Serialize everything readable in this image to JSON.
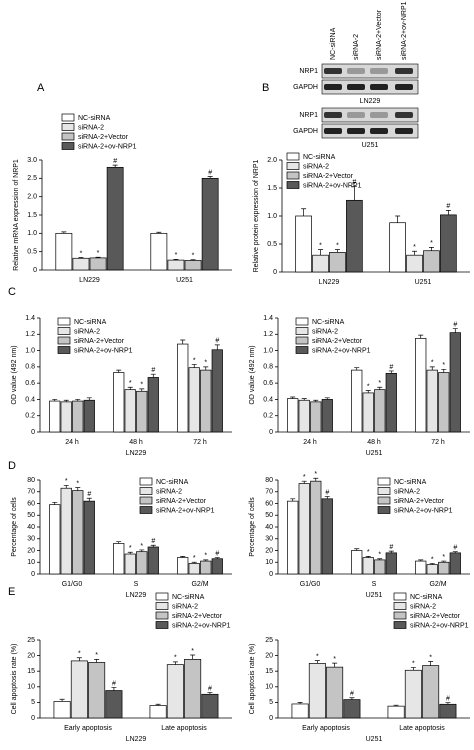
{
  "chart_data": [
    {
      "type": "bar",
      "panel": "A",
      "ylabel": "Relative mRNA expression of NRP1",
      "categories": [
        "LN229",
        "U251"
      ],
      "ylim": [
        0,
        3
      ],
      "yticks": [
        0,
        0.5,
        {
          "value": 1,
          "label": "1.0"
        },
        1.5,
        {
          "value": 2,
          "label": "2.0"
        },
        2.5,
        {
          "value": 3,
          "label": "3.0"
        }
      ],
      "series": [
        {
          "name": "NC-siRNA",
          "color": "#ffffff",
          "values": [
            1.0,
            1.0
          ],
          "errors": [
            0.04,
            0.03
          ],
          "marks": [
            null,
            null
          ]
        },
        {
          "name": "siRNA-2",
          "color": "#e6e6e6",
          "values": [
            0.32,
            0.27
          ],
          "errors": [
            0.02,
            0.02
          ],
          "marks": [
            "*",
            "*"
          ]
        },
        {
          "name": "siRNA-2+Vector",
          "color": "#c4c4c4",
          "values": [
            0.33,
            0.26
          ],
          "errors": [
            0.02,
            0.02
          ],
          "marks": [
            "*",
            "*"
          ]
        },
        {
          "name": "siRNA-2+ov-NRP1",
          "color": "#595959",
          "values": [
            2.8,
            2.5
          ],
          "errors": [
            0.06,
            0.05
          ],
          "marks": [
            "#",
            "#"
          ]
        }
      ]
    },
    {
      "type": "bar",
      "ylabel": "Relative protein expression of NRP1",
      "categories": [
        "LN229",
        "U251"
      ],
      "ylim": [
        0,
        2
      ],
      "yticks": [
        0,
        0.5,
        {
          "value": 1,
          "label": "1.0"
        },
        1.5,
        {
          "value": 2,
          "label": "2.0"
        }
      ],
      "series": [
        {
          "name": "NC-siRNA",
          "color": "#ffffff",
          "values": [
            1.0,
            0.88
          ],
          "errors": [
            0.13,
            0.12
          ],
          "marks": [
            null,
            null
          ]
        },
        {
          "name": "siRNA-2",
          "color": "#e6e6e6",
          "values": [
            0.3,
            0.3
          ],
          "errors": [
            0.1,
            0.07
          ],
          "marks": [
            "*",
            "*"
          ]
        },
        {
          "name": "siRNA-2+Vector",
          "color": "#c4c4c4",
          "values": [
            0.35,
            0.38
          ],
          "errors": [
            0.05,
            0.06
          ],
          "marks": [
            "*",
            "*"
          ]
        },
        {
          "name": "siRNA-2+ov-NRP1",
          "color": "#595959",
          "values": [
            1.28,
            1.02
          ],
          "errors": [
            0.25,
            0.08
          ],
          "marks": [
            "#",
            "#"
          ]
        }
      ]
    },
    {
      "type": "bar",
      "panel": "C",
      "ylabel": "OD value (492 nm)",
      "xlabel": "LN229",
      "categories": [
        "24 h",
        "48 h",
        "72 h"
      ],
      "ylim": [
        0,
        1.4
      ],
      "yticks": [
        0,
        0.2,
        0.4,
        0.6,
        0.8,
        {
          "value": 1,
          "label": "1.0"
        },
        1.2,
        1.4
      ],
      "series": [
        {
          "name": "NC-siRNA",
          "color": "#ffffff",
          "values": [
            0.38,
            0.73,
            1.08
          ],
          "errors": [
            0.02,
            0.03,
            0.05
          ],
          "marks": [
            null,
            null,
            null
          ]
        },
        {
          "name": "siRNA-2",
          "color": "#e6e6e6",
          "values": [
            0.37,
            0.52,
            0.79
          ],
          "errors": [
            0.02,
            0.03,
            0.04
          ],
          "marks": [
            null,
            "*",
            "*"
          ]
        },
        {
          "name": "siRNA-2+Vector",
          "color": "#c4c4c4",
          "values": [
            0.38,
            0.5,
            0.76
          ],
          "errors": [
            0.02,
            0.03,
            0.04
          ],
          "marks": [
            null,
            "*",
            "*"
          ]
        },
        {
          "name": "siRNA-2+ov-NRP1",
          "color": "#595959",
          "values": [
            0.39,
            0.67,
            1.01
          ],
          "errors": [
            0.03,
            0.04,
            0.06
          ],
          "marks": [
            null,
            "#",
            "#"
          ]
        }
      ]
    },
    {
      "type": "bar",
      "ylabel": "OD value (492 nm)",
      "xlabel": "U251",
      "categories": [
        "24 h",
        "48 h",
        "72 h"
      ],
      "ylim": [
        0,
        1.4
      ],
      "yticks": [
        0,
        0.2,
        0.4,
        0.6,
        0.8,
        {
          "value": 1,
          "label": "1.0"
        },
        1.2,
        1.4
      ],
      "series": [
        {
          "name": "NC-siRNA",
          "color": "#ffffff",
          "values": [
            0.41,
            0.76,
            1.15
          ],
          "errors": [
            0.02,
            0.03,
            0.04
          ],
          "marks": [
            null,
            null,
            null
          ]
        },
        {
          "name": "siRNA-2",
          "color": "#e6e6e6",
          "values": [
            0.39,
            0.48,
            0.76
          ],
          "errors": [
            0.02,
            0.03,
            0.04
          ],
          "marks": [
            null,
            "*",
            "*"
          ]
        },
        {
          "name": "siRNA-2+Vector",
          "color": "#c4c4c4",
          "values": [
            0.37,
            0.52,
            0.73
          ],
          "errors": [
            0.02,
            0.03,
            0.04
          ],
          "marks": [
            null,
            "*",
            "*"
          ]
        },
        {
          "name": "siRNA-2+ov-NRP1",
          "color": "#595959",
          "values": [
            0.4,
            0.72,
            1.22
          ],
          "errors": [
            0.02,
            0.03,
            0.05
          ],
          "marks": [
            null,
            "#",
            "#"
          ]
        }
      ]
    },
    {
      "type": "bar",
      "panel": "D",
      "ylabel": "Percentage of cells",
      "xlabel": "LN229",
      "categories": [
        "G1/G0",
        "S",
        "G2/M"
      ],
      "ylim": [
        0,
        80
      ],
      "yticks": [
        0,
        10,
        20,
        30,
        40,
        50,
        60,
        70,
        80
      ],
      "series": [
        {
          "name": "NC-siRNA",
          "color": "#ffffff",
          "values": [
            59,
            26,
            14
          ],
          "errors": [
            2,
            1.5,
            1
          ],
          "marks": [
            null,
            null,
            null
          ]
        },
        {
          "name": "siRNA-2",
          "color": "#e6e6e6",
          "values": [
            73,
            17,
            9
          ],
          "errors": [
            2.5,
            1.5,
            1
          ],
          "marks": [
            "*",
            "*",
            "*"
          ]
        },
        {
          "name": "siRNA-2+Vector",
          "color": "#c4c4c4",
          "values": [
            71,
            19,
            11
          ],
          "errors": [
            2.5,
            1.5,
            1
          ],
          "marks": [
            "*",
            "*",
            "*"
          ]
        },
        {
          "name": "siRNA-2+ov-NRP1",
          "color": "#595959",
          "values": [
            62,
            23,
            13
          ],
          "errors": [
            2.5,
            1.5,
            1
          ],
          "marks": [
            "#",
            "#",
            "#"
          ]
        }
      ]
    },
    {
      "type": "bar",
      "ylabel": "Percentage of cells",
      "xlabel": "U251",
      "categories": [
        "G1/G0",
        "S",
        "G2/M"
      ],
      "ylim": [
        0,
        80
      ],
      "yticks": [
        0,
        10,
        20,
        30,
        40,
        50,
        60,
        70,
        80
      ],
      "series": [
        {
          "name": "NC-siRNA",
          "color": "#ffffff",
          "values": [
            62,
            20,
            11
          ],
          "errors": [
            2,
            1.5,
            1
          ],
          "marks": [
            null,
            null,
            null
          ]
        },
        {
          "name": "siRNA-2",
          "color": "#e6e6e6",
          "values": [
            77,
            14,
            8
          ],
          "errors": [
            2,
            1,
            1
          ],
          "marks": [
            "*",
            "*",
            "*"
          ]
        },
        {
          "name": "siRNA-2+Vector",
          "color": "#c4c4c4",
          "values": [
            79,
            12,
            10
          ],
          "errors": [
            2.5,
            1,
            1
          ],
          "marks": [
            "*",
            "*",
            "*"
          ]
        },
        {
          "name": "siRNA-2+ov-NRP1",
          "color": "#595959",
          "values": [
            64,
            18,
            18
          ],
          "errors": [
            2,
            1.5,
            1
          ],
          "marks": [
            "#",
            "#",
            "#"
          ]
        }
      ]
    },
    {
      "type": "bar",
      "panel": "E",
      "ylabel": "Cell apoptosis rate (%)",
      "xlabel": "LN229",
      "categories": [
        "Early apoptosis",
        "Late apoptosis"
      ],
      "ylim": [
        0,
        25
      ],
      "yticks": [
        0,
        5,
        10,
        15,
        20,
        25
      ],
      "series": [
        {
          "name": "NC-siRNA",
          "color": "#ffffff",
          "values": [
            5.3,
            4.0
          ],
          "errors": [
            0.7,
            0.4
          ],
          "marks": [
            null,
            null
          ]
        },
        {
          "name": "siRNA-2",
          "color": "#e6e6e6",
          "values": [
            18.3,
            17.1
          ],
          "errors": [
            1.0,
            0.9
          ],
          "marks": [
            "*",
            "*"
          ]
        },
        {
          "name": "siRNA-2+Vector",
          "color": "#c4c4c4",
          "values": [
            17.8,
            18.8
          ],
          "errors": [
            1.0,
            1.4
          ],
          "marks": [
            "*",
            "*"
          ]
        },
        {
          "name": "siRNA-2+ov-NRP1",
          "color": "#595959",
          "values": [
            8.8,
            7.6
          ],
          "errors": [
            1.0,
            0.6
          ],
          "marks": [
            "#",
            "#"
          ]
        }
      ]
    },
    {
      "type": "bar",
      "ylabel": "Cell apoptosis rate (%)",
      "xlabel": "U251",
      "categories": [
        "Early apoptosis",
        "Late apoptosis"
      ],
      "ylim": [
        0,
        25
      ],
      "yticks": [
        0,
        5,
        10,
        15,
        20,
        25
      ],
      "series": [
        {
          "name": "NC-siRNA",
          "color": "#ffffff",
          "values": [
            4.5,
            3.8
          ],
          "errors": [
            0.5,
            0.3
          ],
          "marks": [
            null,
            null
          ]
        },
        {
          "name": "siRNA-2",
          "color": "#e6e6e6",
          "values": [
            17.5,
            15.3
          ],
          "errors": [
            0.9,
            0.9
          ],
          "marks": [
            "*",
            "*"
          ]
        },
        {
          "name": "siRNA-2+Vector",
          "color": "#c4c4c4",
          "values": [
            16.3,
            16.8
          ],
          "errors": [
            1.3,
            1.3
          ],
          "marks": [
            "*",
            "*"
          ]
        },
        {
          "name": "siRNA-2+ov-NRP1",
          "color": "#595959",
          "values": [
            5.9,
            4.4
          ],
          "errors": [
            0.6,
            0.5
          ],
          "marks": [
            "#",
            "#"
          ]
        }
      ]
    }
  ],
  "blot": {
    "panel": "B",
    "lanes": [
      "NC-siRNA",
      "siRNA-2",
      "siRNA-2+Vector",
      "siRNA-2+ov-NRP1"
    ],
    "blocks": [
      {
        "rows": [
          "NRP1",
          "GAPDH"
        ],
        "cell_line": "LN229"
      },
      {
        "rows": [
          "NRP1",
          "GAPDH"
        ],
        "cell_line": "U251"
      }
    ]
  }
}
